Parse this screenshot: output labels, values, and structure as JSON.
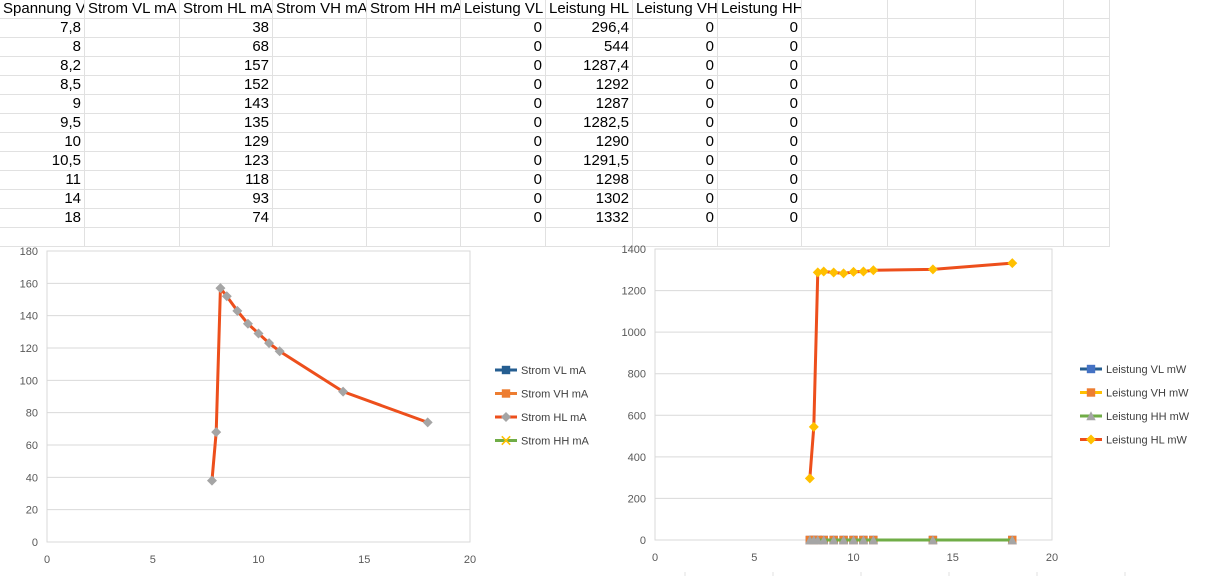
{
  "sheet": {
    "headers": [
      "Spannung V",
      "Strom VL mA",
      "Strom HL mA",
      "Strom VH mA",
      "Strom HH mA",
      "Leistung VL mW",
      "Leistung HL mW",
      "Leistung VH mW",
      "Leistung HH mW"
    ],
    "header_display": [
      "Spannung V",
      "Strom VL mA",
      "Strom HL mA",
      "Strom VH mA",
      "Strom HH mA",
      "Leistung VL ı",
      "Leistung HL ı",
      "Leistung VH",
      "Leistung HH mW"
    ],
    "rows": [
      [
        "7,8",
        "",
        "38",
        "",
        "",
        "0",
        "296,4",
        "0",
        "0"
      ],
      [
        "8",
        "",
        "68",
        "",
        "",
        "0",
        "544",
        "0",
        "0"
      ],
      [
        "8,2",
        "",
        "157",
        "",
        "",
        "0",
        "1287,4",
        "0",
        "0"
      ],
      [
        "8,5",
        "",
        "152",
        "",
        "",
        "0",
        "1292",
        "0",
        "0"
      ],
      [
        "9",
        "",
        "143",
        "",
        "",
        "0",
        "1287",
        "0",
        "0"
      ],
      [
        "9,5",
        "",
        "135",
        "",
        "",
        "0",
        "1282,5",
        "0",
        "0"
      ],
      [
        "10",
        "",
        "129",
        "",
        "",
        "0",
        "1290",
        "0",
        "0"
      ],
      [
        "10,5",
        "",
        "123",
        "",
        "",
        "0",
        "1291,5",
        "0",
        "0"
      ],
      [
        "11",
        "",
        "118",
        "",
        "",
        "0",
        "1298",
        "0",
        "0"
      ],
      [
        "14",
        "",
        "93",
        "",
        "",
        "0",
        "1302",
        "0",
        "0"
      ],
      [
        "18",
        "",
        "74",
        "",
        "",
        "0",
        "1332",
        "0",
        "0"
      ]
    ]
  },
  "chart_data": [
    {
      "type": "scatter",
      "title": "",
      "xlabel": "",
      "ylabel": "",
      "xlim": [
        0,
        20
      ],
      "ylim": [
        0,
        180
      ],
      "xticks": [
        0,
        5,
        10,
        15,
        20
      ],
      "yticks": [
        0,
        20,
        40,
        60,
        80,
        100,
        120,
        140,
        160,
        180
      ],
      "x": [
        7.8,
        8,
        8.2,
        8.5,
        9,
        9.5,
        10,
        10.5,
        11,
        14,
        18
      ],
      "legend_position": "right",
      "series": [
        {
          "name": "Strom VL mA",
          "color": "#255e91",
          "marker": "square",
          "values": []
        },
        {
          "name": "Strom VH mA",
          "color": "#ed7d31",
          "marker": "square",
          "values": []
        },
        {
          "name": "Strom HL mA",
          "color": "#ed4f1c",
          "marker": "diamond",
          "marker_color": "#a5a5a5",
          "values": [
            38,
            68,
            157,
            152,
            143,
            135,
            129,
            123,
            118,
            93,
            74
          ]
        },
        {
          "name": "Strom HH mA",
          "color": "#70ad47",
          "marker": "x",
          "marker_color": "#ffc000",
          "values": []
        }
      ],
      "grid": true
    },
    {
      "type": "scatter",
      "title": "",
      "xlabel": "",
      "ylabel": "",
      "xlim": [
        0,
        20
      ],
      "ylim": [
        0,
        1400
      ],
      "xticks": [
        0,
        5,
        10,
        15,
        20
      ],
      "yticks": [
        0,
        200,
        400,
        600,
        800,
        1000,
        1200,
        1400
      ],
      "x": [
        7.8,
        8,
        8.2,
        8.5,
        9,
        9.5,
        10,
        10.5,
        11,
        14,
        18
      ],
      "legend_position": "right",
      "series": [
        {
          "name": "Leistung VL mW",
          "color": "#255e91",
          "marker": "square",
          "marker_color": "#4472c4",
          "values": [
            0,
            0,
            0,
            0,
            0,
            0,
            0,
            0,
            0,
            0,
            0
          ]
        },
        {
          "name": "Leistung VH mW",
          "color": "#ffc000",
          "marker": "square",
          "marker_color": "#ed7d31",
          "values": [
            0,
            0,
            0,
            0,
            0,
            0,
            0,
            0,
            0,
            0,
            0
          ]
        },
        {
          "name": "Leistung HH mW",
          "color": "#70ad47",
          "marker": "triangle",
          "marker_color": "#a5a5a5",
          "values": [
            0,
            0,
            0,
            0,
            0,
            0,
            0,
            0,
            0,
            0,
            0
          ]
        },
        {
          "name": "Leistung HL mW",
          "color": "#ed4f1c",
          "marker": "diamond",
          "marker_color": "#ffc000",
          "values": [
            296.4,
            544,
            1287.4,
            1292,
            1287,
            1282.5,
            1290,
            1291.5,
            1298,
            1302,
            1332
          ]
        }
      ],
      "grid": true
    }
  ]
}
